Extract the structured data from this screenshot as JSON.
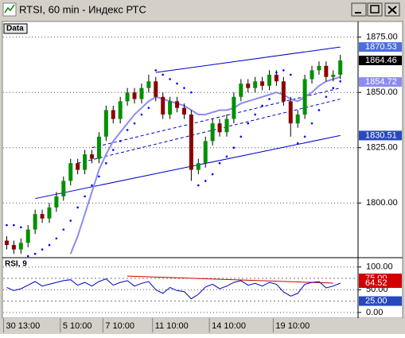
{
  "window": {
    "title": "RTSI, 60 min - Индекс РТС"
  },
  "chart_data": [
    {
      "type": "candlestick",
      "label": "Data",
      "categories": [
        "30 13:00",
        null,
        null,
        null,
        null,
        null,
        null,
        null,
        "5 10:00",
        null,
        null,
        null,
        null,
        null,
        "7 10:00",
        null,
        null,
        null,
        null,
        null,
        null,
        "11 10:00",
        null,
        null,
        null,
        null,
        null,
        null,
        null,
        "14 10:00",
        null,
        null,
        null,
        null,
        null,
        null,
        null,
        null,
        "19 10:00",
        null,
        null,
        null,
        null,
        null,
        null,
        null,
        null,
        null
      ],
      "open": [
        1783,
        1781,
        1779,
        1782,
        1788,
        1795,
        1793,
        1798,
        1803,
        1810,
        1818,
        1815,
        1822,
        1820,
        1830,
        1842,
        1838,
        1846,
        1850,
        1847,
        1852,
        1855,
        1848,
        1840,
        1846,
        1843,
        1840,
        1815,
        1818,
        1828,
        1836,
        1832,
        1838,
        1848,
        1854,
        1852,
        1855,
        1853,
        1858,
        1855,
        1846,
        1836,
        1840,
        1856,
        1860,
        1862,
        1857,
        1858
      ],
      "high": [
        1785,
        1783,
        1784,
        1790,
        1797,
        1797,
        1800,
        1805,
        1812,
        1820,
        1820,
        1824,
        1824,
        1832,
        1844,
        1844,
        1848,
        1852,
        1852,
        1854,
        1858,
        1857,
        1850,
        1848,
        1848,
        1845,
        1842,
        1820,
        1830,
        1838,
        1838,
        1840,
        1850,
        1856,
        1856,
        1857,
        1857,
        1860,
        1860,
        1857,
        1848,
        1842,
        1858,
        1862,
        1864,
        1864,
        1860,
        1867
      ],
      "low": [
        1779,
        1777,
        1777,
        1780,
        1786,
        1791,
        1791,
        1796,
        1801,
        1808,
        1813,
        1813,
        1818,
        1818,
        1828,
        1836,
        1836,
        1844,
        1845,
        1845,
        1850,
        1846,
        1838,
        1838,
        1841,
        1838,
        1810,
        1813,
        1816,
        1826,
        1830,
        1830,
        1836,
        1846,
        1850,
        1850,
        1851,
        1851,
        1853,
        1844,
        1830,
        1834,
        1838,
        1854,
        1858,
        1855,
        1855,
        1856
      ],
      "close": [
        1781,
        1779,
        1782,
        1788,
        1795,
        1793,
        1798,
        1803,
        1810,
        1818,
        1815,
        1822,
        1820,
        1830,
        1842,
        1838,
        1846,
        1850,
        1847,
        1852,
        1855,
        1848,
        1840,
        1846,
        1843,
        1840,
        1815,
        1818,
        1828,
        1836,
        1832,
        1838,
        1848,
        1854,
        1852,
        1855,
        1853,
        1858,
        1855,
        1846,
        1836,
        1840,
        1856,
        1860,
        1862,
        1857,
        1858,
        1864.46
      ],
      "up_color": "#009000",
      "down_color": "#8b0000",
      "ylim": [
        1776,
        1881
      ],
      "yticks": [
        {
          "value": 1800,
          "label": "1800.00"
        },
        {
          "value": 1825,
          "label": "1825.00"
        },
        {
          "value": 1850,
          "label": "1850.00"
        },
        {
          "value": 1875,
          "label": "1875.00"
        }
      ],
      "grid": true,
      "ma": {
        "color": "#8c8cf0",
        "values": [
          null,
          null,
          null,
          null,
          null,
          null,
          null,
          null,
          null,
          1777,
          1785,
          1795,
          1805,
          1815,
          1822,
          1828,
          1832,
          1836,
          1840,
          1843,
          1846,
          1848,
          1847,
          1846,
          1845,
          1844,
          1842,
          1840,
          1840,
          1841,
          1842,
          1842,
          1843,
          1845,
          1846,
          1847,
          1848,
          1849,
          1850,
          1849,
          1847,
          1846,
          1848,
          1850,
          1853,
          1855,
          1856,
          1857
        ]
      },
      "sar": {
        "color": "#0000ff",
        "values": [
          1790,
          1790,
          1789,
          1776,
          1777,
          1779,
          1781,
          1784,
          1788,
          1792,
          1798,
          1803,
          1808,
          1812,
          1818,
          1824,
          1828,
          1833,
          1836,
          1840,
          1843,
          1860,
          1858,
          1856,
          1854,
          1852,
          1850,
          1808,
          1810,
          1813,
          1818,
          1821,
          1825,
          1830,
          1836,
          1840,
          1844,
          1847,
          1859,
          1860,
          1858,
          1827,
          1830,
          1836,
          1842,
          1848,
          1852,
          1855
        ]
      },
      "trendlines": [
        {
          "x": [
            21,
            47
          ],
          "y": [
            1859,
            1870.53
          ],
          "color": "#0000cc",
          "dash": false
        },
        {
          "x": [
            4,
            47
          ],
          "y": [
            1802,
            1830.51
          ],
          "color": "#0000cc",
          "dash": false
        },
        {
          "x": [
            10,
            47
          ],
          "y": [
            1818,
            1847
          ],
          "color": "#0000cc",
          "dash": true
        },
        {
          "x": [
            12,
            47
          ],
          "y": [
            1825,
            1852
          ],
          "color": "#0000cc",
          "dash": true
        }
      ],
      "price_markers": [
        {
          "value": 1870.53,
          "label": "1870.53",
          "color": "#4a6ee0"
        },
        {
          "value": 1864.46,
          "label": "1864.46",
          "color": "#000000"
        },
        {
          "value": 1854.72,
          "label": "1854.72",
          "color": "#8c8cf0"
        },
        {
          "value": 1830.51,
          "label": "1830.51",
          "color": "#2848c0"
        }
      ]
    },
    {
      "type": "line",
      "label": "RSI, 9",
      "color": "#0000c0",
      "values": [
        55,
        48,
        52,
        60,
        68,
        58,
        62,
        66,
        70,
        72,
        60,
        66,
        58,
        68,
        74,
        60,
        66,
        70,
        58,
        64,
        68,
        50,
        42,
        55,
        48,
        46,
        30,
        40,
        56,
        62,
        52,
        58,
        66,
        70,
        60,
        64,
        58,
        66,
        62,
        45,
        36,
        42,
        62,
        66,
        68,
        54,
        58,
        64.52
      ],
      "ylim": [
        -9,
        117
      ],
      "yticks": [
        {
          "value": 0,
          "label": "0.00"
        },
        {
          "value": 50,
          "label": "50.00"
        },
        {
          "value": 100,
          "label": "100.00"
        }
      ],
      "levels": [
        25,
        75
      ],
      "trendlines": [
        {
          "x": [
            17,
            46
          ],
          "y": [
            80,
            64.52
          ],
          "color": "#d00000",
          "dash": false
        }
      ],
      "price_markers": [
        {
          "value": 75,
          "label": "75.00",
          "color": "#d00000"
        },
        {
          "value": 64.52,
          "label": "64.52",
          "color": "#d00000"
        },
        {
          "value": 25,
          "label": "25.00",
          "color": "#2848c0"
        }
      ]
    }
  ]
}
